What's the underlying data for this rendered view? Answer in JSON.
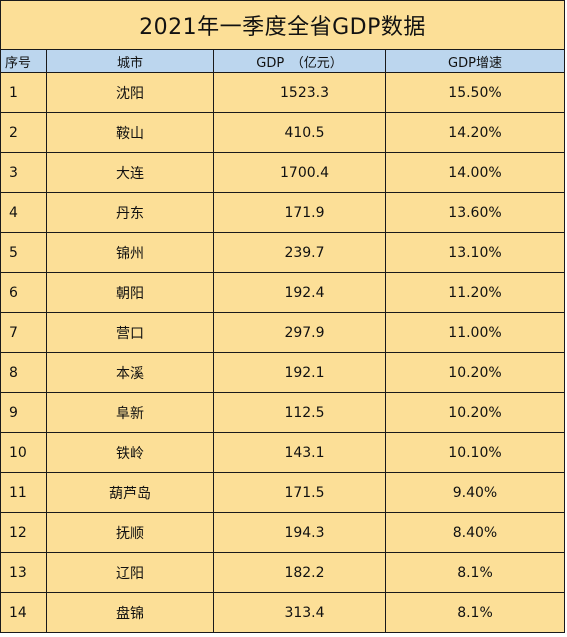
{
  "title": "2021年一季度全省GDP数据",
  "headers": {
    "index": "序号",
    "city": "城市",
    "gdp": "GDP　（亿元）",
    "growth": "GDP增速"
  },
  "rows": [
    {
      "index": "1",
      "city": "沈阳",
      "gdp": "1523.3",
      "growth": "15.50%"
    },
    {
      "index": "2",
      "city": "鞍山",
      "gdp": "410.5",
      "growth": "14.20%"
    },
    {
      "index": "3",
      "city": "大连",
      "gdp": "1700.4",
      "growth": "14.00%"
    },
    {
      "index": "4",
      "city": "丹东",
      "gdp": "171.9",
      "growth": "13.60%"
    },
    {
      "index": "5",
      "city": "锦州",
      "gdp": "239.7",
      "growth": "13.10%"
    },
    {
      "index": "6",
      "city": "朝阳",
      "gdp": "192.4",
      "growth": "11.20%"
    },
    {
      "index": "7",
      "city": "营口",
      "gdp": "297.9",
      "growth": "11.00%"
    },
    {
      "index": "8",
      "city": "本溪",
      "gdp": "192.1",
      "growth": "10.20%"
    },
    {
      "index": "9",
      "city": "阜新",
      "gdp": "112.5",
      "growth": "10.20%"
    },
    {
      "index": "10",
      "city": "铁岭",
      "gdp": "143.1",
      "growth": "10.10%"
    },
    {
      "index": "11",
      "city": "葫芦岛",
      "gdp": "171.5",
      "growth": "9.40%"
    },
    {
      "index": "12",
      "city": "抚顺",
      "gdp": "194.3",
      "growth": "8.40%"
    },
    {
      "index": "13",
      "city": "辽阳",
      "gdp": "182.2",
      "growth": "8.1%"
    },
    {
      "index": "14",
      "city": "盘锦",
      "gdp": "313.4",
      "growth": "8.1%"
    }
  ]
}
